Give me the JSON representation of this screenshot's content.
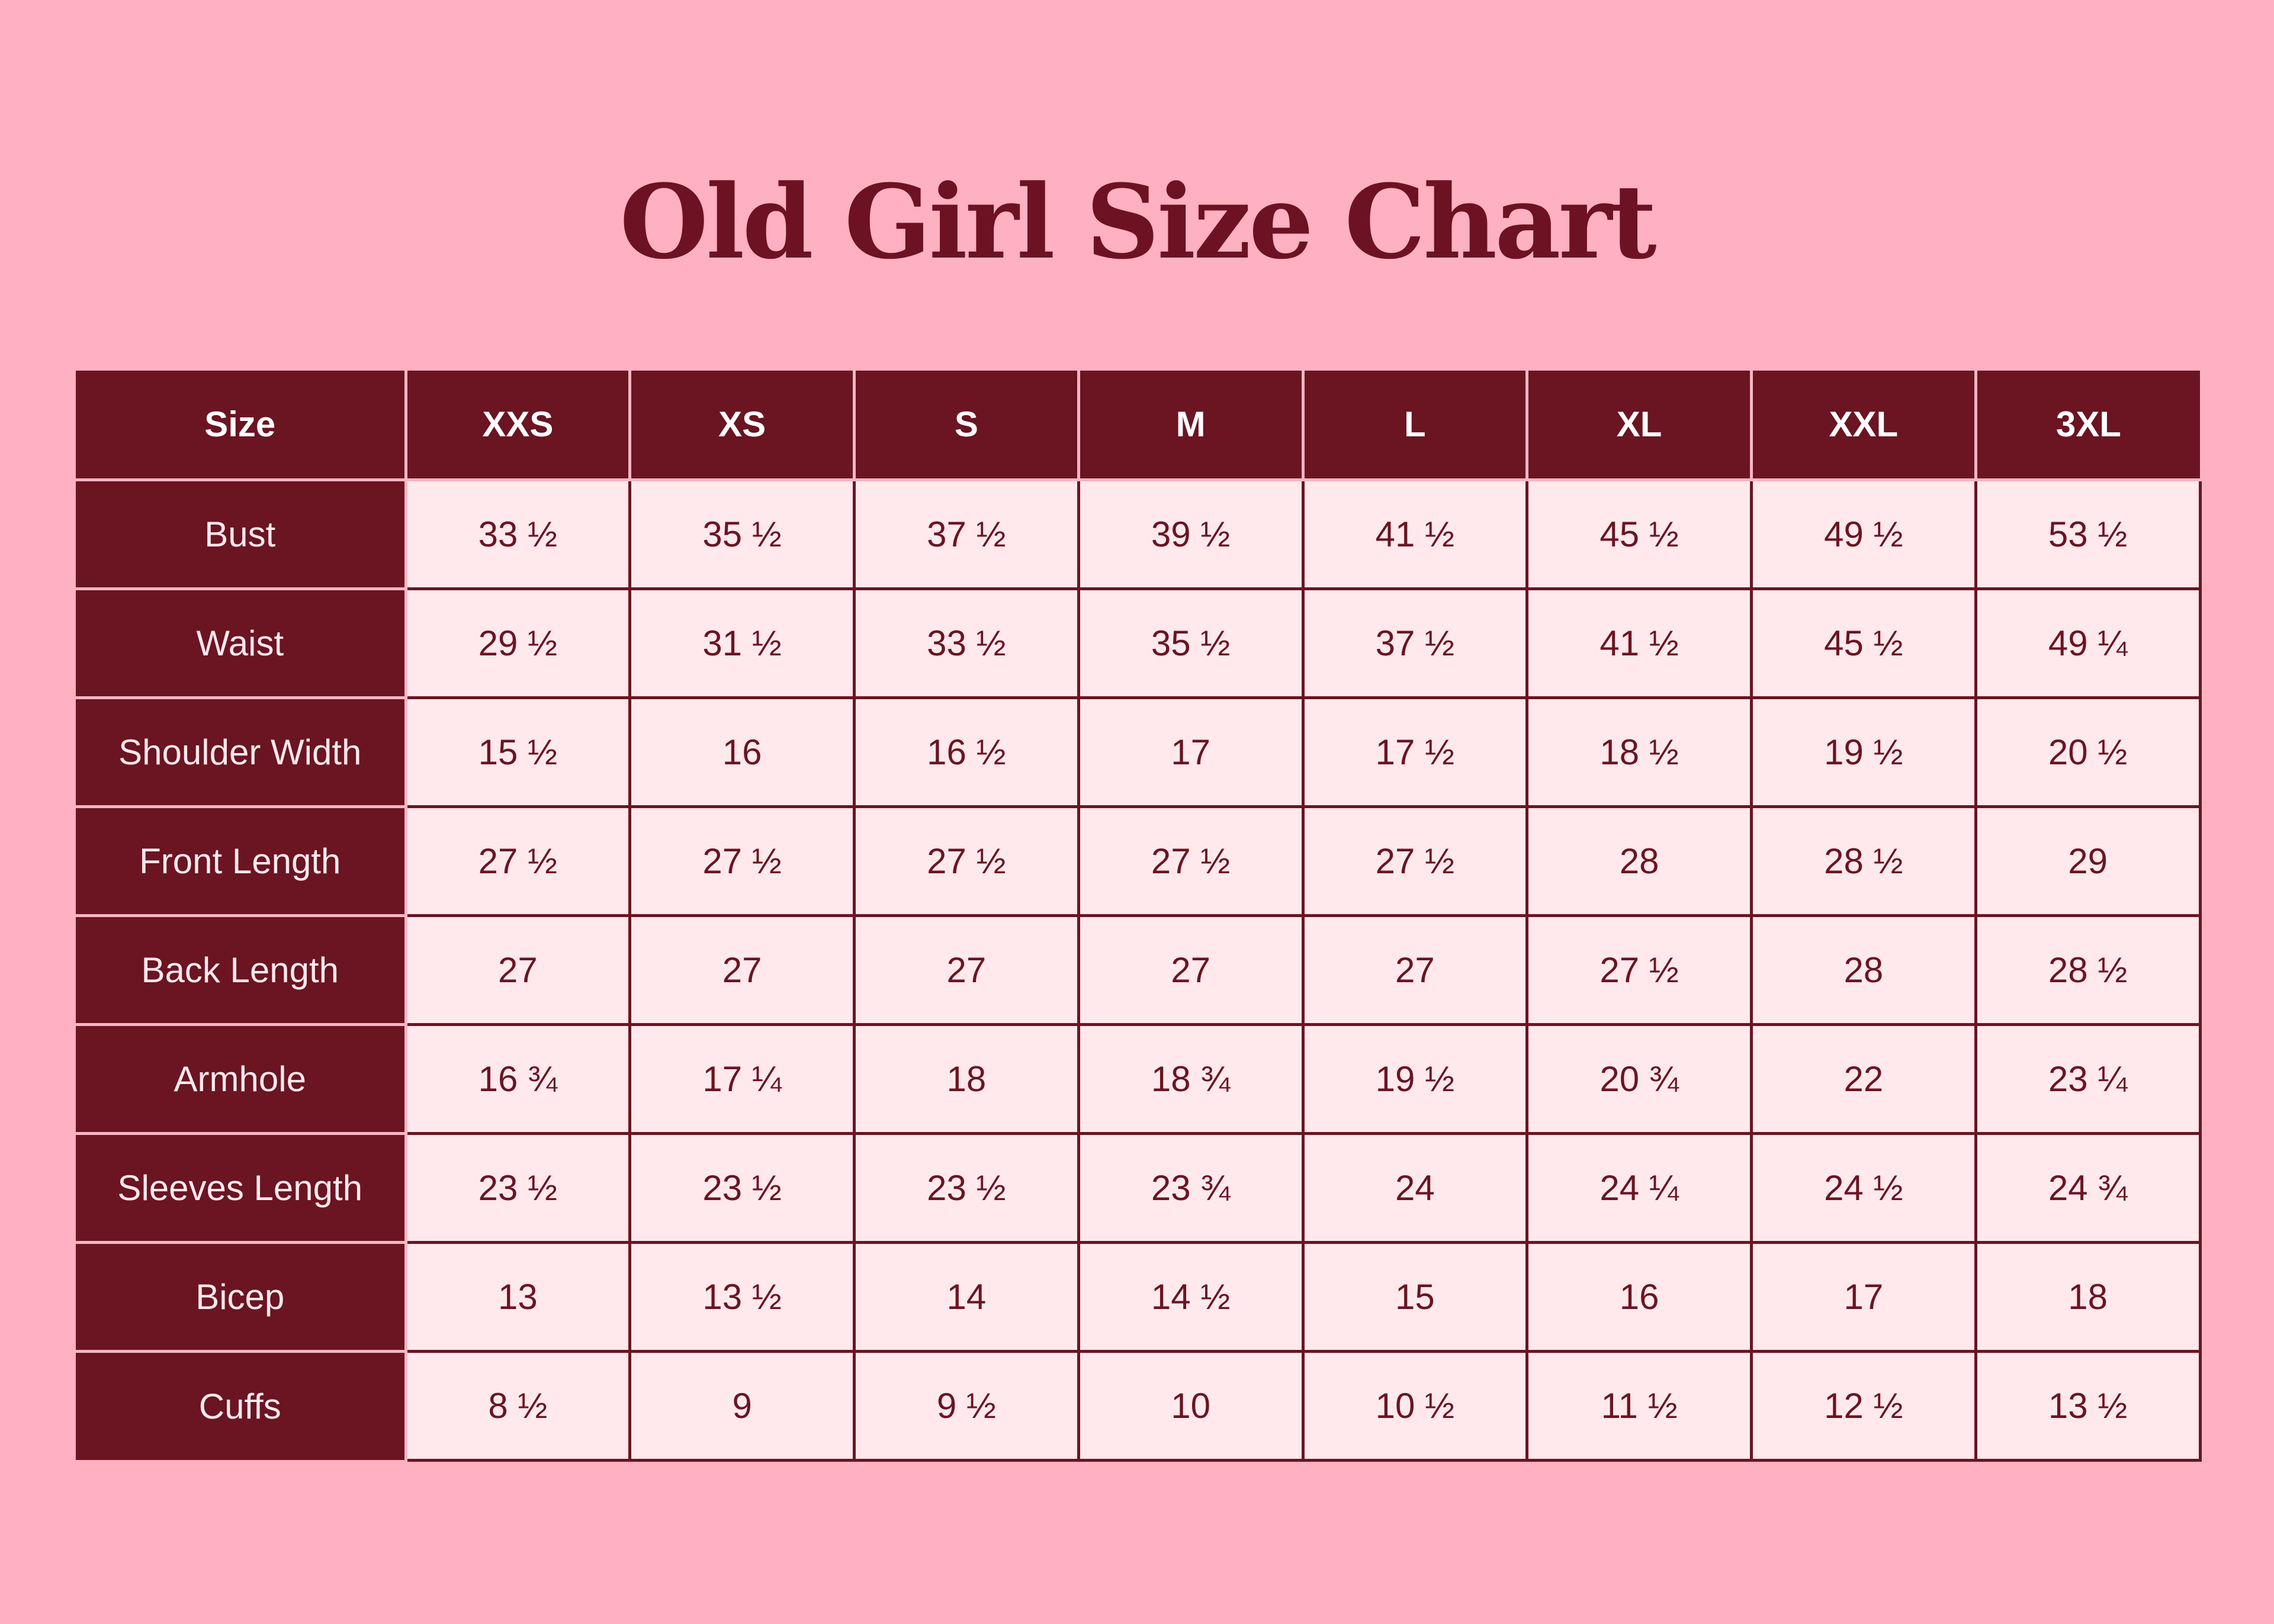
{
  "title": "Old Girl Size Chart",
  "colors": {
    "background": "#ffb1c1",
    "accent": "#6b1422",
    "cell_background": "#ffe9ec"
  },
  "table": {
    "header": [
      "Size",
      "XXS",
      "XS",
      "S",
      "M",
      "L",
      "XL",
      "XXL",
      "3XL"
    ],
    "rows": [
      {
        "label": "Bust",
        "values": [
          "33 ½",
          "35 ½",
          "37 ½",
          "39 ½",
          "41 ½",
          "45 ½",
          "49 ½",
          "53 ½"
        ]
      },
      {
        "label": "Waist",
        "values": [
          "29 ½",
          "31 ½",
          "33 ½",
          "35 ½",
          "37 ½",
          "41 ½",
          "45 ½",
          "49 ¼"
        ]
      },
      {
        "label": "Shoulder Width",
        "values": [
          "15 ½",
          "16",
          "16 ½",
          "17",
          "17 ½",
          "18 ½",
          "19 ½",
          "20 ½"
        ]
      },
      {
        "label": "Front Length",
        "values": [
          "27 ½",
          "27 ½",
          "27 ½",
          "27 ½",
          "27 ½",
          "28",
          "28 ½",
          "29"
        ]
      },
      {
        "label": "Back Length",
        "values": [
          "27",
          "27",
          "27",
          "27",
          "27",
          "27 ½",
          "28",
          "28 ½"
        ]
      },
      {
        "label": "Armhole",
        "values": [
          "16 ¾",
          "17 ¼",
          "18",
          "18 ¾",
          "19 ½",
          "20 ¾",
          "22",
          "23 ¼"
        ]
      },
      {
        "label": "Sleeves Length",
        "values": [
          "23 ½",
          "23 ½",
          "23 ½",
          "23 ¾",
          "24",
          "24 ¼",
          "24 ½",
          "24 ¾"
        ]
      },
      {
        "label": "Bicep",
        "values": [
          "13",
          "13 ½",
          "14",
          "14 ½",
          "15",
          "16",
          "17",
          "18"
        ]
      },
      {
        "label": "Cuffs",
        "values": [
          "8 ½",
          "9",
          "9 ½",
          "10",
          "10 ½",
          "11 ½",
          "12 ½",
          "13 ½"
        ]
      }
    ]
  }
}
